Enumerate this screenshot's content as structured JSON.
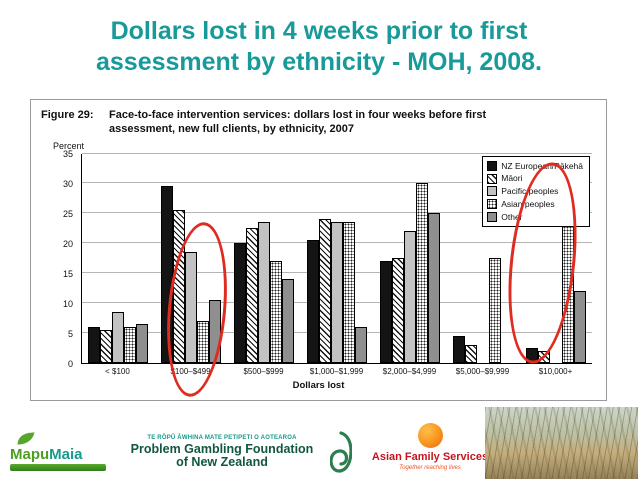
{
  "slide": {
    "title_line1": "Dollars lost in 4 weeks prior to first",
    "title_line2": "assessment by ethnicity - MOH, 2008."
  },
  "chart_data": {
    "type": "bar",
    "figure_label": "Figure 29:",
    "title": "Face-to-face intervention services: dollars lost in four weeks before first assessment, new full clients, by ethnicity, 2007",
    "ylabel": "Percent",
    "xlabel": "Dollars lost",
    "ylim": [
      0,
      35
    ],
    "ytick_step": 5,
    "grid": true,
    "legend_position": "top-right",
    "categories": [
      "< $100",
      "$100–$499",
      "$500–$999",
      "$1,000–$1,999",
      "$2,000–$4,999",
      "$5,000–$9,999",
      "$10,000+"
    ],
    "series": [
      {
        "name": "NZ European/Pākehā",
        "pattern": "solid-black",
        "values": [
          6,
          29.5,
          20,
          20.5,
          17,
          4.5,
          2.5
        ]
      },
      {
        "name": "Māori",
        "pattern": "diagonal-hatch",
        "values": [
          5.5,
          25.5,
          22.5,
          24,
          17.5,
          3,
          2
        ]
      },
      {
        "name": "Pacific peoples",
        "pattern": "light-gray-solid",
        "values": [
          8.5,
          18.5,
          23.5,
          23.5,
          22,
          0,
          0
        ]
      },
      {
        "name": "Asian peoples",
        "pattern": "stipple-dots",
        "values": [
          6,
          7,
          17,
          23.5,
          30,
          17.5,
          29
        ]
      },
      {
        "name": "Other",
        "pattern": "mid-gray-solid",
        "values": [
          6.5,
          10.5,
          14,
          6,
          25,
          0,
          12
        ]
      }
    ],
    "annotations": [
      {
        "shape": "ellipse",
        "color": "#e02b20",
        "note": "low Asian peoples share at $100–$499"
      },
      {
        "shape": "ellipse",
        "color": "#e02b20",
        "note": "high Asian peoples share at $10,000+"
      }
    ]
  },
  "footer": {
    "mapumaia": {
      "word_part1": "Mapu",
      "word_part2": "Maia"
    },
    "pgf": {
      "line1": "TE RŌPŪ ĀWHINA MATE PETIPETI O AOTEAROA",
      "line2": "Problem Gambling Foundation",
      "line3": "of New Zealand"
    },
    "afs": {
      "name": "Asian Family Services",
      "tagline": "Together reaching lives"
    }
  },
  "colors": {
    "title_teal": "#18999a",
    "annotation_red": "#e02b20",
    "pgf_green": "#11573f",
    "afs_red": "#c4161c",
    "afs_orange": "#f7941d",
    "mapumaia_green": "#4f9e21"
  }
}
